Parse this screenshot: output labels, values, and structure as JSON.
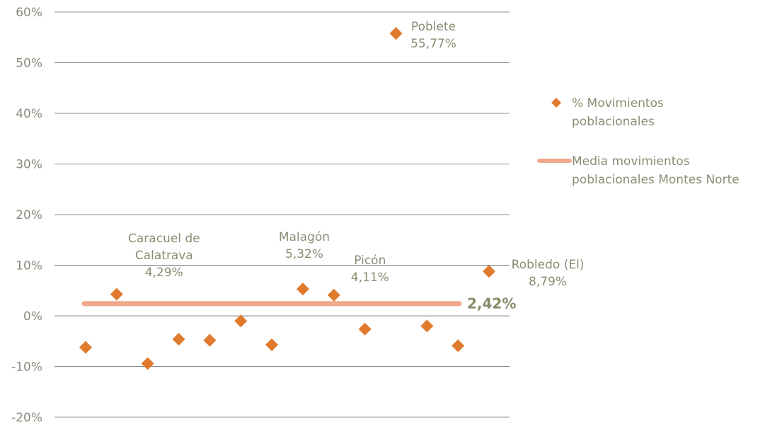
{
  "chart_data": {
    "type": "scatter",
    "ylim": [
      -20,
      60
    ],
    "yticks": [
      60,
      50,
      40,
      30,
      20,
      10,
      0,
      -10,
      -20
    ],
    "ytick_labels": [
      "60%",
      "50%",
      "40%",
      "30%",
      "20%",
      "10%",
      "0%",
      "-10%",
      "-20%"
    ],
    "grid": true,
    "series": [
      {
        "name": "% Movimientos poblacionales",
        "color": "#e07b2e",
        "values": [
          -6.2,
          4.29,
          -9.4,
          -4.6,
          -4.8,
          -1.0,
          -5.7,
          5.32,
          4.11,
          -2.6,
          55.77,
          -2.0,
          -5.9,
          8.79
        ]
      },
      {
        "name": "Media movimientos poblacionales Montes Norte",
        "color": "#f0a98a",
        "value": 2.42
      }
    ],
    "point_labels": [
      {
        "index": 1,
        "lines": [
          "Caracuel de",
          "Calatrava",
          "4,29%"
        ]
      },
      {
        "index": 7,
        "lines": [
          "Malagón",
          "5,32%"
        ]
      },
      {
        "index": 8,
        "lines": [
          "Picón",
          "4,11%"
        ]
      },
      {
        "index": 10,
        "lines": [
          "Poblete",
          "55,77%"
        ]
      },
      {
        "index": 13,
        "lines": [
          "Robledo (El)",
          "8,79%"
        ]
      }
    ],
    "average_label": "2,42%",
    "legend": {
      "position": "right",
      "entries": [
        {
          "lines": [
            "% Movimientos",
            "poblacionales"
          ]
        },
        {
          "lines": [
            "Media movimientos",
            "poblacionales Montes Norte"
          ]
        }
      ]
    }
  }
}
